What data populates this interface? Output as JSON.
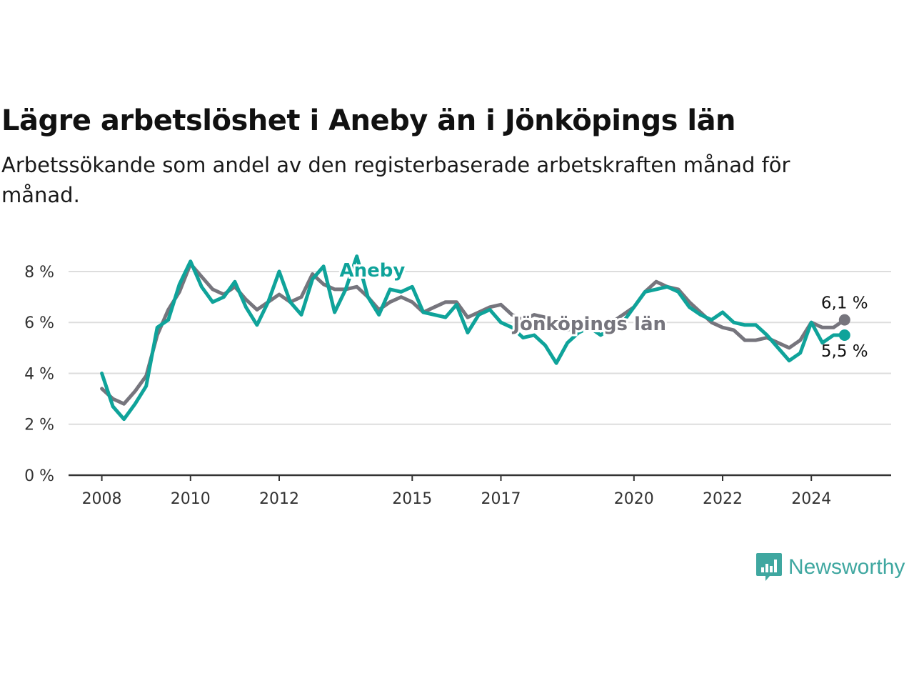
{
  "header": {
    "title": "Lägre arbetslöshet i Aneby än i Jönköpings län",
    "subtitle": "Arbetssökande som andel av den registerbaserade arbetskraften månad för månad."
  },
  "brand": {
    "name": "Newsworthy",
    "color": "#3fa7a0",
    "icon": "newsworthy-logo-icon"
  },
  "colors": {
    "aneby": "#0fa39a",
    "lan": "#76757d",
    "grid": "#dddddd",
    "axis": "#333333"
  },
  "chart_data": {
    "type": "line",
    "ylim": [
      0,
      8.7
    ],
    "y_ticks": [
      0,
      2,
      4,
      6,
      8
    ],
    "y_tick_labels": [
      "0 %",
      "2 %",
      "4 %",
      "6 %",
      "8 %"
    ],
    "x_ticks": [
      2008,
      2010,
      2012,
      2015,
      2017,
      2020,
      2022,
      2024
    ],
    "x_tick_labels": [
      "2008",
      "2010",
      "2012",
      "2015",
      "2017",
      "2020",
      "2022",
      "2024"
    ],
    "xlim": [
      2007.25,
      2025.8
    ],
    "grid": true,
    "series": [
      {
        "name": "Jönköpings län",
        "color": "#76757d",
        "end_label": "6,1 %",
        "x": [
          2008.0,
          2008.25,
          2008.5,
          2008.75,
          2009.0,
          2009.25,
          2009.5,
          2009.75,
          2010.0,
          2010.25,
          2010.5,
          2010.75,
          2011.0,
          2011.25,
          2011.5,
          2011.75,
          2012.0,
          2012.25,
          2012.5,
          2012.75,
          2013.0,
          2013.25,
          2013.5,
          2013.75,
          2014.0,
          2014.25,
          2014.5,
          2014.75,
          2015.0,
          2015.25,
          2015.5,
          2015.75,
          2016.0,
          2016.25,
          2016.5,
          2016.75,
          2017.0,
          2017.25,
          2017.5,
          2017.75,
          2018.0,
          2018.25,
          2018.5,
          2018.75,
          2019.0,
          2019.25,
          2019.5,
          2019.75,
          2020.0,
          2020.25,
          2020.5,
          2020.75,
          2021.0,
          2021.25,
          2021.5,
          2021.75,
          2022.0,
          2022.25,
          2022.5,
          2022.75,
          2023.0,
          2023.25,
          2023.5,
          2023.75,
          2024.0,
          2024.25,
          2024.5,
          2024.75
        ],
        "values": [
          3.4,
          3.0,
          2.8,
          3.3,
          3.9,
          5.5,
          6.5,
          7.2,
          8.3,
          7.8,
          7.3,
          7.1,
          7.4,
          6.9,
          6.5,
          6.8,
          7.1,
          6.8,
          7.0,
          7.9,
          7.5,
          7.3,
          7.3,
          7.4,
          7.0,
          6.5,
          6.8,
          7.0,
          6.8,
          6.4,
          6.6,
          6.8,
          6.8,
          6.2,
          6.4,
          6.6,
          6.7,
          6.3,
          6.1,
          6.3,
          6.2,
          5.9,
          5.7,
          5.9,
          5.7,
          5.7,
          6.0,
          6.3,
          6.6,
          7.2,
          7.6,
          7.4,
          7.3,
          6.8,
          6.4,
          6.0,
          5.8,
          5.7,
          5.3,
          5.3,
          5.4,
          5.2,
          5.0,
          5.3,
          6.0,
          5.8,
          5.8,
          6.1
        ]
      },
      {
        "name": "Aneby",
        "color": "#0fa39a",
        "end_label": "5,5 %",
        "x": [
          2008.0,
          2008.25,
          2008.5,
          2008.75,
          2009.0,
          2009.25,
          2009.5,
          2009.75,
          2010.0,
          2010.25,
          2010.5,
          2010.75,
          2011.0,
          2011.25,
          2011.5,
          2011.75,
          2012.0,
          2012.25,
          2012.5,
          2012.75,
          2013.0,
          2013.25,
          2013.5,
          2013.75,
          2014.0,
          2014.25,
          2014.5,
          2014.75,
          2015.0,
          2015.25,
          2015.5,
          2015.75,
          2016.0,
          2016.25,
          2016.5,
          2016.75,
          2017.0,
          2017.25,
          2017.5,
          2017.75,
          2018.0,
          2018.25,
          2018.5,
          2018.75,
          2019.0,
          2019.25,
          2019.5,
          2019.75,
          2020.0,
          2020.25,
          2020.5,
          2020.75,
          2021.0,
          2021.25,
          2021.5,
          2021.75,
          2022.0,
          2022.25,
          2022.5,
          2022.75,
          2023.0,
          2023.25,
          2023.5,
          2023.75,
          2024.0,
          2024.25,
          2024.5,
          2024.75
        ],
        "values": [
          4.0,
          2.7,
          2.2,
          2.8,
          3.5,
          5.8,
          6.1,
          7.5,
          8.4,
          7.4,
          6.8,
          7.0,
          7.6,
          6.6,
          5.9,
          6.8,
          8.0,
          6.8,
          6.3,
          7.7,
          8.2,
          6.4,
          7.3,
          8.6,
          7.0,
          6.3,
          7.3,
          7.2,
          7.4,
          6.4,
          6.3,
          6.2,
          6.7,
          5.6,
          6.3,
          6.5,
          6.0,
          5.8,
          5.4,
          5.5,
          5.1,
          4.4,
          5.2,
          5.6,
          5.8,
          5.5,
          5.8,
          6.0,
          6.6,
          7.2,
          7.3,
          7.4,
          7.2,
          6.6,
          6.3,
          6.1,
          6.4,
          6.0,
          5.9,
          5.9,
          5.5,
          5.0,
          4.5,
          4.8,
          6.0,
          5.2,
          5.5,
          5.5
        ]
      }
    ],
    "annotations": [
      {
        "text": "Aneby",
        "series": "Aneby",
        "x": 2014.1,
        "y": 7.8
      },
      {
        "text": "Jönköpings län",
        "series": "Jönköpings län",
        "x": 2019.0,
        "y": 5.7
      }
    ]
  }
}
